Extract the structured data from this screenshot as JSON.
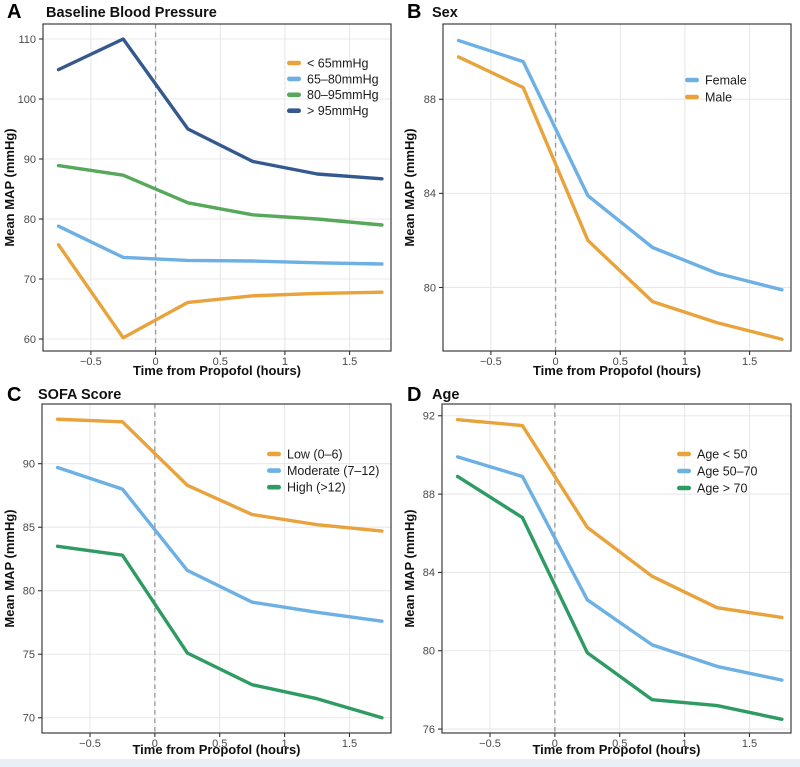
{
  "figure": {
    "x_axis_label": "Time from Propofol (hours)",
    "y_axis_label": "Mean MAP (mmHg)"
  },
  "ui": {
    "background_color": "#FFFFFF",
    "grid_color": "#E8E8E8",
    "border_color": "#3C3C3C",
    "tick_label_color": "#4A4A4A",
    "dashed_line_color": "#969696",
    "footer_strip_color": "#E9EFF6"
  },
  "chart_data": [
    {
      "type": "line",
      "panel_label": "A",
      "title": "Baseline Blood Pressure",
      "xlabel": "Time from Propofol (hours)",
      "ylabel": "Mean MAP (mmHg)",
      "x": [
        -0.75,
        -0.25,
        0.25,
        0.75,
        1.25,
        1.75
      ],
      "series": [
        {
          "name": "< 65mmHg",
          "color": "#E8A33C",
          "values": [
            75.7,
            60.2,
            66.1,
            67.2,
            67.6,
            67.8
          ]
        },
        {
          "name": "65–80mmHg",
          "color": "#6CB0E4",
          "values": [
            78.8,
            73.6,
            73.1,
            73.0,
            72.7,
            72.5
          ]
        },
        {
          "name": "80–95mmHg",
          "color": "#57A85A",
          "values": [
            88.9,
            87.3,
            82.7,
            80.7,
            80.0,
            79.0
          ]
        },
        {
          "name": "> 95mmHg",
          "color": "#35598E",
          "values": [
            104.9,
            110.0,
            95.0,
            89.6,
            87.5,
            86.7
          ]
        }
      ],
      "xlim": [
        -0.87,
        1.82
      ],
      "ylim": [
        58.0,
        112.5
      ],
      "xticks": [
        -0.5,
        0,
        0.5,
        1,
        1.5
      ],
      "xtick_labels": [
        "−0.5",
        "0",
        "0.5",
        "1",
        "1.5"
      ],
      "yticks": [
        60,
        70,
        80,
        90,
        100,
        110
      ],
      "vline_x": 0,
      "grid": true,
      "legend_position": "upper-right"
    },
    {
      "type": "line",
      "panel_label": "B",
      "title": "Sex",
      "xlabel": "Time from Propofol (hours)",
      "ylabel": "Mean MAP (mmHg)",
      "x": [
        -0.75,
        -0.25,
        0.25,
        0.75,
        1.25,
        1.75
      ],
      "series": [
        {
          "name": "Female",
          "color": "#6CB0E4",
          "values": [
            90.5,
            89.6,
            83.9,
            81.7,
            80.6,
            79.9
          ]
        },
        {
          "name": "Male",
          "color": "#E8A33C",
          "values": [
            89.8,
            88.5,
            82.0,
            79.4,
            78.5,
            77.8
          ]
        }
      ],
      "xlim": [
        -0.87,
        1.82
      ],
      "ylim": [
        77.3,
        91.2
      ],
      "xticks": [
        -0.5,
        0,
        0.5,
        1,
        1.5
      ],
      "xtick_labels": [
        "−0.5",
        "0",
        "0.5",
        "1",
        "1.5"
      ],
      "yticks": [
        80,
        84,
        88
      ],
      "vline_x": 0,
      "grid": true,
      "legend_position": "upper-right"
    },
    {
      "type": "line",
      "panel_label": "C",
      "title": "SOFA Score",
      "xlabel": "Time from Propofol (hours)",
      "ylabel": "Mean MAP (mmHg)",
      "x": [
        -0.75,
        -0.25,
        0.25,
        0.75,
        1.25,
        1.75
      ],
      "series": [
        {
          "name": "Low (0–6)",
          "color": "#E8A33C",
          "values": [
            93.5,
            93.3,
            88.3,
            86.0,
            85.2,
            84.7
          ]
        },
        {
          "name": "Moderate (7–12)",
          "color": "#6CB0E4",
          "values": [
            89.7,
            88.0,
            81.6,
            79.1,
            78.3,
            77.6
          ]
        },
        {
          "name": "High (>12)",
          "color": "#2E9B63",
          "values": [
            83.5,
            82.8,
            75.1,
            72.6,
            71.5,
            70.0
          ]
        }
      ],
      "xlim": [
        -0.87,
        1.82
      ],
      "ylim": [
        68.8,
        94.7
      ],
      "xticks": [
        -0.5,
        0,
        0.5,
        1,
        1.5
      ],
      "xtick_labels": [
        "−0.5",
        "0",
        "0.5",
        "1",
        "1.5"
      ],
      "yticks": [
        70,
        75,
        80,
        85,
        90
      ],
      "vline_x": 0,
      "grid": true,
      "legend_position": "upper-right"
    },
    {
      "type": "line",
      "panel_label": "D",
      "title": "Age",
      "xlabel": "Time from Propofol (hours)",
      "ylabel": "Mean MAP (mmHg)",
      "x": [
        -0.75,
        -0.25,
        0.25,
        0.75,
        1.25,
        1.75
      ],
      "series": [
        {
          "name": "Age < 50",
          "color": "#E8A33C",
          "values": [
            91.8,
            91.5,
            86.3,
            83.8,
            82.2,
            81.7
          ]
        },
        {
          "name": "Age 50–70",
          "color": "#6CB0E4",
          "values": [
            89.9,
            88.9,
            82.6,
            80.3,
            79.2,
            78.5
          ]
        },
        {
          "name": "Age > 70",
          "color": "#2E9B63",
          "values": [
            88.9,
            86.8,
            79.9,
            77.5,
            77.2,
            76.5
          ]
        }
      ],
      "xlim": [
        -0.87,
        1.82
      ],
      "ylim": [
        75.8,
        92.6
      ],
      "xticks": [
        -0.5,
        0,
        0.5,
        1,
        1.5
      ],
      "xtick_labels": [
        "−0.5",
        "0",
        "0.5",
        "1",
        "1.5"
      ],
      "yticks": [
        76,
        80,
        84,
        88,
        92
      ],
      "vline_x": 0,
      "grid": true,
      "legend_position": "upper-right"
    }
  ]
}
